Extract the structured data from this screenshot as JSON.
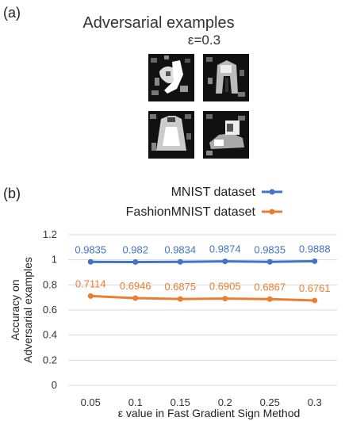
{
  "panel_a": {
    "label": "(a)",
    "title": "Adversarial examples",
    "epsilon": "ε=0.3"
  },
  "panel_b": {
    "label": "(b)"
  },
  "chart_data": {
    "type": "line",
    "categories": [
      "0.05",
      "0.1",
      "0.15",
      "0.2",
      "0.25",
      "0.3"
    ],
    "series": [
      {
        "name": "MNIST dataset",
        "color": "#4472c4",
        "values": [
          0.9835,
          0.982,
          0.9834,
          0.9874,
          0.9835,
          0.9888
        ],
        "labels": [
          "0.9835",
          "0.982",
          "0.9834",
          "0.9874",
          "0.9835",
          "0.9888"
        ]
      },
      {
        "name": "FashionMNIST dataset",
        "color": "#ed7d31",
        "values": [
          0.7114,
          0.6946,
          0.6875,
          0.6905,
          0.6867,
          0.6761
        ],
        "labels": [
          "0.7114",
          "0.6946",
          "0.6875",
          "0.6905",
          "0.6867",
          "0.6761"
        ]
      }
    ],
    "xlabel": "ε value in Fast Gradient Sign Method",
    "ylabel": [
      "Accuracy on",
      "Adversarial examples"
    ],
    "ylim": [
      0,
      1.2
    ],
    "yticks": [
      "0",
      "0.2",
      "0.4",
      "0.6",
      "0.8",
      "1",
      "1.2"
    ],
    "grid": true,
    "legend_position": "top-right"
  }
}
